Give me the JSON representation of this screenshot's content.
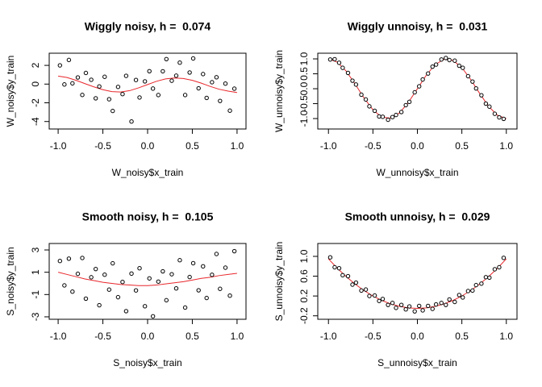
{
  "chart_data": [
    {
      "type": "scatter",
      "title": "Wiggly noisy, h =  0.074",
      "xlabel": "W_noisy$x_train",
      "ylabel": "W_noisy$y_train",
      "xlim": [
        -1.1,
        1.1
      ],
      "ylim": [
        -4.8,
        3.3
      ],
      "xticks": [
        {
          "value": -1,
          "label": "-1.0"
        },
        -0.5,
        {
          "value": 0,
          "label": "0.0"
        },
        0.5,
        {
          "value": 1,
          "label": "1.0"
        }
      ],
      "yticks": [
        -4,
        -2,
        0,
        2
      ],
      "point_color": "#000000",
      "x": [
        -0.98,
        -0.93,
        -0.88,
        -0.84,
        -0.78,
        -0.73,
        -0.69,
        -0.63,
        -0.58,
        -0.54,
        -0.48,
        -0.43,
        -0.39,
        -0.33,
        -0.28,
        -0.24,
        -0.18,
        -0.13,
        -0.09,
        -0.03,
        0.02,
        0.06,
        0.12,
        0.17,
        0.21,
        0.27,
        0.32,
        0.36,
        0.42,
        0.47,
        0.51,
        0.57,
        0.62,
        0.66,
        0.72,
        0.77,
        0.81,
        0.87,
        0.92,
        0.97
      ],
      "y": [
        2.0,
        -0.04,
        2.58,
        0.08,
        0.71,
        -1.16,
        1.19,
        0.46,
        -1.52,
        -0.25,
        0.78,
        -1.62,
        -2.87,
        -0.3,
        -1.07,
        0.88,
        -4.0,
        0.44,
        -1.43,
        0.29,
        1.38,
        -0.48,
        -1.17,
        1.37,
        2.67,
        0.36,
        0.9,
        2.29,
        -1.17,
        1.24,
        2.74,
        -0.45,
        1.07,
        -1.48,
        0.2,
        0.73,
        -1.8,
        0.05,
        -2.84,
        -0.49
      ],
      "fit": {
        "color": "#e8262b",
        "x": [
          -1,
          -0.9,
          -0.8,
          -0.7,
          -0.6,
          -0.5,
          -0.4,
          -0.3,
          -0.2,
          -0.1,
          0,
          0.1,
          0.2,
          0.3,
          0.4,
          0.5,
          0.6,
          0.7,
          0.8,
          0.9,
          1
        ],
        "y": [
          0.85,
          0.7,
          0.4,
          0.05,
          -0.3,
          -0.6,
          -0.8,
          -0.85,
          -0.7,
          -0.4,
          -0.05,
          0.3,
          0.55,
          0.65,
          0.6,
          0.4,
          0.1,
          -0.25,
          -0.55,
          -0.75,
          -0.9
        ]
      }
    },
    {
      "type": "scatter",
      "title": "Wiggly unnoisy, h =  0.031",
      "xlabel": "W_unnoisy$x_train",
      "ylabel": "W_unnoisy$y_train",
      "xlim": [
        -1.12,
        1.12
      ],
      "ylim": [
        -1.35,
        1.19
      ],
      "xticks": [
        {
          "value": -1,
          "label": "-1.0"
        },
        -0.5,
        {
          "value": 0,
          "label": "0.0"
        },
        0.5,
        {
          "value": 1,
          "label": "1.0"
        }
      ],
      "yticks": [
        {
          "value": -1,
          "label": "-1.0"
        },
        -0.5,
        {
          "value": 0,
          "label": "0.0"
        },
        0.5,
        {
          "value": 1,
          "label": "1.0"
        }
      ],
      "point_color": "#000000",
      "x": [
        -0.98,
        -0.93,
        -0.88,
        -0.84,
        -0.78,
        -0.73,
        -0.69,
        -0.63,
        -0.58,
        -0.54,
        -0.48,
        -0.43,
        -0.39,
        -0.33,
        -0.28,
        -0.24,
        -0.18,
        -0.13,
        -0.09,
        -0.03,
        0.02,
        0.06,
        0.12,
        0.17,
        0.21,
        0.27,
        0.32,
        0.36,
        0.42,
        0.47,
        0.51,
        0.57,
        0.62,
        0.66,
        0.72,
        0.77,
        0.81,
        0.87,
        0.92,
        0.97
      ],
      "y": [
        0.98,
        0.99,
        0.87,
        0.7,
        0.53,
        0.27,
        0.14,
        -0.2,
        -0.36,
        -0.59,
        -0.74,
        -0.93,
        -0.94,
        -1.04,
        -0.95,
        -0.88,
        -0.78,
        -0.55,
        -0.44,
        -0.12,
        0.08,
        0.31,
        0.51,
        0.74,
        0.81,
        0.98,
        1.03,
        0.96,
        0.94,
        0.77,
        0.7,
        0.42,
        0.24,
        0.01,
        -0.22,
        -0.5,
        -0.6,
        -0.84,
        -0.96,
        -1.01
      ],
      "fit": {
        "color": "#e8262b",
        "x": [
          -1,
          -0.9,
          -0.8,
          -0.7,
          -0.6,
          -0.5,
          -0.4,
          -0.3,
          -0.2,
          -0.1,
          0,
          0.1,
          0.2,
          0.3,
          0.4,
          0.5,
          0.6,
          0.7,
          0.8,
          0.9,
          1
        ],
        "y": [
          1.0,
          0.891,
          0.588,
          0.156,
          -0.309,
          -0.707,
          -0.951,
          -0.988,
          -0.809,
          -0.454,
          0,
          0.454,
          0.809,
          0.988,
          0.951,
          0.707,
          0.309,
          -0.156,
          -0.588,
          -0.891,
          -1.0
        ]
      }
    },
    {
      "type": "scatter",
      "title": "Smooth noisy, h =  0.105",
      "xlabel": "S_noisy$x_train",
      "ylabel": "S_noisy$y_train",
      "xlim": [
        -1.1,
        1.1
      ],
      "ylim": [
        -3.22,
        3.58
      ],
      "xticks": [
        {
          "value": -1,
          "label": "-1.0"
        },
        -0.5,
        {
          "value": 0,
          "label": "0.0"
        },
        0.5,
        {
          "value": 1,
          "label": "1.0"
        }
      ],
      "yticks": [
        -3,
        -1,
        1,
        3
      ],
      "point_color": "#000000",
      "x": [
        -0.98,
        -0.93,
        -0.88,
        -0.84,
        -0.78,
        -0.73,
        -0.69,
        -0.63,
        -0.58,
        -0.54,
        -0.48,
        -0.43,
        -0.39,
        -0.33,
        -0.28,
        -0.24,
        -0.18,
        -0.13,
        -0.09,
        -0.03,
        0.02,
        0.06,
        0.12,
        0.17,
        0.21,
        0.27,
        0.32,
        0.36,
        0.42,
        0.47,
        0.51,
        0.57,
        0.62,
        0.66,
        0.72,
        0.77,
        0.81,
        0.87,
        0.92,
        0.97
      ],
      "y": [
        2.01,
        -0.18,
        2.22,
        -0.74,
        0.86,
        2.28,
        -1.37,
        0.55,
        1.29,
        -1.96,
        0.78,
        -0.56,
        1.8,
        -1.24,
        0.13,
        -2.49,
        0.88,
        -0.63,
        1.36,
        -2.05,
        0.45,
        -2.95,
        0.16,
        1.08,
        -1.51,
        0.82,
        -0.45,
        2.08,
        -2.17,
        0.57,
        1.81,
        -0.62,
        1.53,
        -1.31,
        0.77,
        2.64,
        -0.49,
        1.41,
        -1.1,
        2.89
      ],
      "fit": {
        "color": "#e8262b",
        "x": [
          -1,
          -0.9,
          -0.8,
          -0.7,
          -0.6,
          -0.5,
          -0.4,
          -0.3,
          -0.2,
          -0.1,
          0,
          0.1,
          0.2,
          0.3,
          0.4,
          0.5,
          0.6,
          0.7,
          0.8,
          0.9,
          1
        ],
        "y": [
          1.0,
          0.8,
          0.6,
          0.4,
          0.25,
          0.1,
          0,
          -0.1,
          -0.15,
          -0.2,
          -0.2,
          -0.15,
          -0.05,
          0.05,
          0.15,
          0.3,
          0.45,
          0.55,
          0.7,
          0.8,
          0.9
        ]
      }
    },
    {
      "type": "scatter",
      "title": "Smooth unnoisy, h =  0.029",
      "xlabel": "S_unnoisy$x_train",
      "ylabel": "S_unnoisy$y_train",
      "xlim": [
        -1.12,
        1.12
      ],
      "ylim": [
        -0.27,
        1.26
      ],
      "xticks": [
        {
          "value": -1,
          "label": "-1.0"
        },
        -0.5,
        {
          "value": 0,
          "label": "0.0"
        },
        0.5,
        {
          "value": 1,
          "label": "1.0"
        }
      ],
      "yticks": [
        -0.2,
        0.2,
        0.6,
        {
          "value": 1,
          "label": "1.0"
        }
      ],
      "point_color": "#000000",
      "x": [
        -0.98,
        -0.93,
        -0.88,
        -0.84,
        -0.78,
        -0.73,
        -0.69,
        -0.63,
        -0.58,
        -0.54,
        -0.48,
        -0.43,
        -0.39,
        -0.33,
        -0.28,
        -0.24,
        -0.18,
        -0.13,
        -0.09,
        -0.03,
        0.02,
        0.06,
        0.12,
        0.17,
        0.21,
        0.27,
        0.32,
        0.36,
        0.42,
        0.47,
        0.51,
        0.57,
        0.62,
        0.66,
        0.72,
        0.77,
        0.81,
        0.87,
        0.92,
        0.97
      ],
      "y": [
        0.98,
        0.78,
        0.76,
        0.62,
        0.6,
        0.43,
        0.47,
        0.31,
        0.33,
        0.2,
        0.21,
        0.1,
        0.14,
        0.02,
        0.06,
        -0.04,
        0.02,
        -0.07,
        -0.01,
        -0.11,
        0.0,
        -0.09,
        0.0,
        -0.06,
        0.03,
        0.06,
        0.02,
        0.13,
        0.08,
        0.22,
        0.17,
        0.3,
        0.31,
        0.42,
        0.45,
        0.58,
        0.57,
        0.74,
        0.78,
        0.97
      ],
      "fit": {
        "color": "#e8262b",
        "x": [
          -1,
          -0.9,
          -0.8,
          -0.7,
          -0.6,
          -0.5,
          -0.4,
          -0.3,
          -0.2,
          -0.1,
          0,
          0.1,
          0.2,
          0.3,
          0.4,
          0.5,
          0.6,
          0.7,
          0.8,
          0.9,
          1
        ],
        "y": [
          0.95,
          0.76,
          0.59,
          0.44,
          0.31,
          0.2,
          0.11,
          0.04,
          -0.01,
          -0.04,
          -0.05,
          -0.04,
          -0.01,
          0.04,
          0.11,
          0.2,
          0.31,
          0.44,
          0.59,
          0.76,
          0.95
        ]
      }
    }
  ]
}
